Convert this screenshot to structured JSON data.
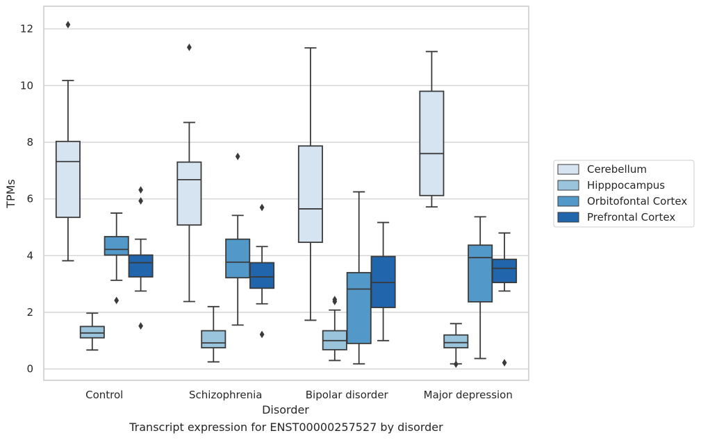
{
  "caption": "Transcript expression for ENST00000257527 by disorder",
  "chart_data": {
    "type": "box",
    "title": "",
    "xlabel": "Disorder",
    "ylabel": "TPMs",
    "ylim": [
      -0.4,
      12.8
    ],
    "yticks": [
      0,
      2,
      4,
      6,
      8,
      10,
      12
    ],
    "grid": "horizontal",
    "legend_position": "right",
    "categories": [
      "Control",
      "Schizophrenia",
      "Bipolar disorder",
      "Major depression"
    ],
    "series": [
      {
        "name": "Cerebellum",
        "color": "#d6e4f2",
        "boxes": [
          {
            "q1": 5.35,
            "median": 7.32,
            "q3": 8.03,
            "whisker_low": 3.82,
            "whisker_high": 10.18,
            "outliers": [
              12.15
            ]
          },
          {
            "q1": 5.08,
            "median": 6.68,
            "q3": 7.3,
            "whisker_low": 2.38,
            "whisker_high": 8.7,
            "outliers": [
              11.35
            ]
          },
          {
            "q1": 4.47,
            "median": 5.65,
            "q3": 7.87,
            "whisker_low": 1.72,
            "whisker_high": 11.33,
            "outliers": []
          },
          {
            "q1": 6.12,
            "median": 7.6,
            "q3": 9.8,
            "whisker_low": 5.72,
            "whisker_high": 11.2,
            "outliers": []
          }
        ]
      },
      {
        "name": "Hipppocampus",
        "color": "#9ac3dc",
        "boxes": [
          {
            "q1": 1.1,
            "median": 1.27,
            "q3": 1.5,
            "whisker_low": 0.67,
            "whisker_high": 1.97,
            "outliers": []
          },
          {
            "q1": 0.75,
            "median": 0.92,
            "q3": 1.35,
            "whisker_low": 0.25,
            "whisker_high": 2.2,
            "outliers": []
          },
          {
            "q1": 0.68,
            "median": 1.0,
            "q3": 1.35,
            "whisker_low": 0.3,
            "whisker_high": 2.08,
            "outliers": [
              2.38,
              2.45
            ]
          },
          {
            "q1": 0.75,
            "median": 0.93,
            "q3": 1.2,
            "whisker_low": 0.18,
            "whisker_high": 1.6,
            "outliers": [
              0.17
            ]
          }
        ]
      },
      {
        "name": "Orbitofontal Cortex",
        "color": "#5299c9",
        "boxes": [
          {
            "q1": 4.02,
            "median": 4.22,
            "q3": 4.67,
            "whisker_low": 3.13,
            "whisker_high": 5.5,
            "outliers": [
              2.42
            ]
          },
          {
            "q1": 3.22,
            "median": 3.77,
            "q3": 4.58,
            "whisker_low": 1.55,
            "whisker_high": 5.42,
            "outliers": [
              7.5
            ]
          },
          {
            "q1": 0.9,
            "median": 2.82,
            "q3": 3.4,
            "whisker_low": 0.18,
            "whisker_high": 6.25,
            "outliers": []
          },
          {
            "q1": 2.37,
            "median": 3.93,
            "q3": 4.37,
            "whisker_low": 0.37,
            "whisker_high": 5.37,
            "outliers": []
          }
        ]
      },
      {
        "name": "Prefrontal Cortex",
        "color": "#2166ac",
        "boxes": [
          {
            "q1": 3.25,
            "median": 3.75,
            "q3": 4.02,
            "whisker_low": 2.75,
            "whisker_high": 4.58,
            "outliers": [
              6.32,
              5.93,
              1.52
            ]
          },
          {
            "q1": 2.85,
            "median": 3.25,
            "q3": 3.75,
            "whisker_low": 2.3,
            "whisker_high": 4.32,
            "outliers": [
              5.7,
              1.22
            ]
          },
          {
            "q1": 2.17,
            "median": 3.05,
            "q3": 3.97,
            "whisker_low": 1.0,
            "whisker_high": 5.17,
            "outliers": []
          },
          {
            "q1": 3.05,
            "median": 3.55,
            "q3": 3.87,
            "whisker_low": 2.75,
            "whisker_high": 4.8,
            "outliers": [
              0.22
            ]
          }
        ]
      }
    ]
  }
}
